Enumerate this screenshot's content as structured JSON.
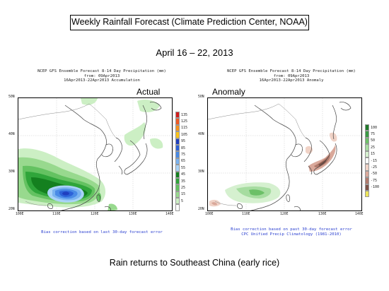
{
  "slide": {
    "title": "Weekly Rainfall Forecast (Climate Prediction Center, NOAA)",
    "date_range": "April 16 – 22, 2013",
    "caption": "Rain returns to Southeast China (early rice)"
  },
  "maps": [
    {
      "header": [
        "NCEP GFS Ensemble Forecast 8-14 Day Precipitation (mm)",
        "from: 09Apr2013",
        "16Apr2013-22Apr2013 Accumulation"
      ],
      "label": "Actual",
      "note": [
        "Bias correction based on last 30-day forecast error"
      ],
      "lat_ticks": [
        "50N",
        "40N",
        "30N",
        "20N"
      ],
      "lon_ticks": [
        "100E",
        "110E",
        "120E",
        "130E",
        "140E"
      ],
      "legend": [
        {
          "label": "135",
          "color": "#d21e1e"
        },
        {
          "label": "125",
          "color": "#f15a24"
        },
        {
          "label": "115",
          "color": "#f7931e"
        },
        {
          "label": "105",
          "color": "#fcc419"
        },
        {
          "label": "95",
          "color": "#1f3fbf"
        },
        {
          "label": "85",
          "color": "#2d62d8"
        },
        {
          "label": "75",
          "color": "#4a8be6"
        },
        {
          "label": "65",
          "color": "#7ab3f0"
        },
        {
          "label": "55",
          "color": "#a9d3f7"
        },
        {
          "label": "45",
          "color": "#14801f"
        },
        {
          "label": "35",
          "color": "#2fa53a"
        },
        {
          "label": "25",
          "color": "#64c261"
        },
        {
          "label": "15",
          "color": "#98d98e"
        },
        {
          "label": "5",
          "color": "#ccefc4"
        },
        {
          "label": "",
          "color": "#ffffff"
        }
      ]
    },
    {
      "header": [
        "NCEP GFS Ensemble Forecast 8-14 Day Precipitation (mm)",
        "from: 09Apr2013",
        "16Apr2013-22Apr2013 Anomaly"
      ],
      "label": "Anomaly",
      "note": [
        "Bias correction based on past 30-day forecast error",
        "CPC Unified Precip Climatology (1981-2010)"
      ],
      "lat_ticks": [
        "50N",
        "40N",
        "30N",
        "20N"
      ],
      "lon_ticks": [
        "100E",
        "110E",
        "120E",
        "130E",
        "140E"
      ],
      "legend": [
        {
          "label": "100",
          "color": "#1f7a2a"
        },
        {
          "label": "75",
          "color": "#3a9a44"
        },
        {
          "label": "50",
          "color": "#6cc068"
        },
        {
          "label": "25",
          "color": "#a6dca0"
        },
        {
          "label": "15",
          "color": "#d5f0cf"
        },
        {
          "label": "-15",
          "color": "#ffffff"
        },
        {
          "label": "-25",
          "color": "#f0d2c6"
        },
        {
          "label": "-50",
          "color": "#d9a89a"
        },
        {
          "label": "-75",
          "color": "#b07a6c"
        },
        {
          "label": "-100",
          "color": "#7d5146"
        },
        {
          "label": "",
          "color": "#ece55a"
        }
      ]
    }
  ]
}
